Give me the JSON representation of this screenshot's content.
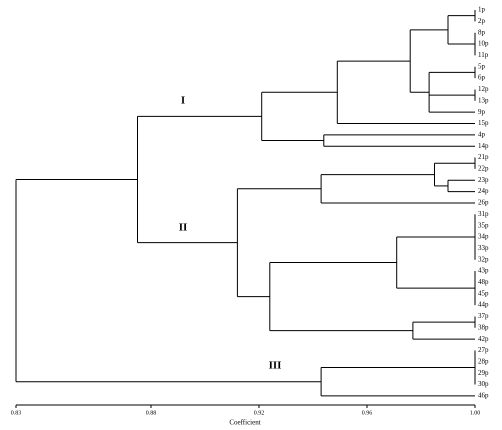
{
  "chart_data": {
    "type": "dendrogram",
    "xlabel": "Coefficient",
    "xlim": [
      0.83,
      1.0
    ],
    "xticks": [
      0.83,
      0.88,
      0.92,
      0.96,
      {
        "value": 1.0,
        "label": "1.00"
      }
    ],
    "color": "#000000",
    "annotations": [
      "I",
      "II",
      "III"
    ],
    "tree": {
      "height": 0.83,
      "children": [
        {
          "height": 0.875,
          "children": [
            {
              "height": 0.921,
              "children": [
                {
                  "height": 0.949,
                  "children": [
                    {
                      "height": 0.976,
                      "children": [
                        {
                          "height": 0.99,
                          "children": [
                            {
                              "height": 1.0,
                              "children": [
                                "1p",
                                "2p"
                              ]
                            },
                            {
                              "height": 1.0,
                              "children": [
                                "8p",
                                "10p",
                                "11p"
                              ]
                            }
                          ]
                        },
                        {
                          "height": 0.983,
                          "children": [
                            {
                              "height": 1.0,
                              "children": [
                                "5p",
                                "6p"
                              ]
                            },
                            {
                              "height": 1.0,
                              "children": [
                                "12p",
                                "13p"
                              ]
                            },
                            "9p"
                          ]
                        }
                      ]
                    },
                    "15p"
                  ]
                },
                {
                  "height": 0.944,
                  "children": [
                    "4p",
                    "14p"
                  ]
                }
              ]
            },
            {
              "height": 0.912,
              "children": [
                {
                  "height": 0.943,
                  "children": [
                    {
                      "height": 0.985,
                      "children": [
                        {
                          "height": 1.0,
                          "children": [
                            "21p",
                            "22p"
                          ]
                        },
                        {
                          "height": 0.99,
                          "children": [
                            "23p",
                            "24p"
                          ]
                        }
                      ]
                    },
                    "26p"
                  ]
                },
                {
                  "height": 0.924,
                  "children": [
                    {
                      "height": 0.971,
                      "children": [
                        {
                          "height": 1.0,
                          "children": [
                            "31p",
                            "35p",
                            "34p",
                            "33p",
                            "32p"
                          ]
                        },
                        {
                          "height": 1.0,
                          "children": [
                            "43p",
                            "48p",
                            "45p",
                            "44p"
                          ]
                        }
                      ]
                    },
                    {
                      "height": 0.977,
                      "children": [
                        {
                          "height": 1.0,
                          "children": [
                            "37p",
                            "38p"
                          ]
                        },
                        "42p"
                      ]
                    }
                  ]
                }
              ]
            }
          ]
        },
        {
          "height": 0.943,
          "children": [
            {
              "height": 1.0,
              "children": [
                "27p",
                "28p",
                "29p",
                "30p"
              ]
            },
            "46p"
          ]
        }
      ]
    }
  }
}
